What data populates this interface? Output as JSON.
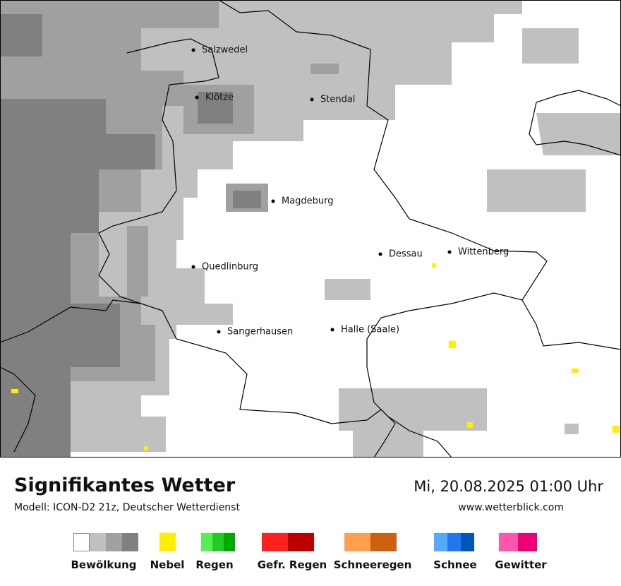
{
  "map": {
    "cities": [
      "Salzwedel",
      "Klötze",
      "Stendal",
      "Magdeburg",
      "Dessau",
      "Wittenberg",
      "Quedlinburg",
      "Sangerhausen",
      "Halle (Saale)"
    ]
  },
  "footer": {
    "title": "Signifikantes Wetter",
    "model": "Modell: ICON-D2 21z, Deutscher Wetterdienst",
    "datetime": "Mi, 20.08.2025 01:00 Uhr",
    "website": "www.wetterblick.com"
  },
  "legend": [
    {
      "label": "Bewölkung",
      "colors": [
        "#ffffff",
        "#c0c0c0",
        "#a0a0a0",
        "#808080"
      ]
    },
    {
      "label": "Nebel",
      "colors": [
        "#ffee00"
      ]
    },
    {
      "label": "Regen",
      "colors": [
        "#55ee55",
        "#22cc22",
        "#00aa00"
      ]
    },
    {
      "label": "Gefr. Regen",
      "colors": [
        "#ff2020",
        "#bb0000"
      ]
    },
    {
      "label": "Schneeregen",
      "colors": [
        "#ffa050",
        "#cc6010"
      ]
    },
    {
      "label": "Schnee",
      "colors": [
        "#55aaff",
        "#2277ee",
        "#0055bb"
      ]
    },
    {
      "label": "Gewitter",
      "colors": [
        "#ff55aa",
        "#ee0077"
      ]
    }
  ]
}
